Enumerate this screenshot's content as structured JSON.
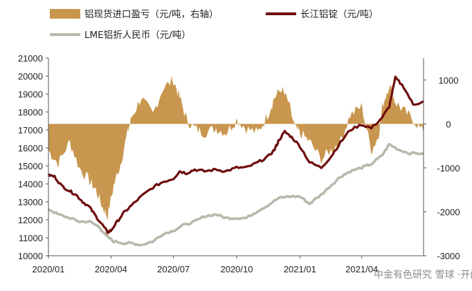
{
  "chart_data": {
    "type": "line",
    "legend": {
      "placement": "top",
      "items": [
        {
          "key": "profit",
          "label": "铝现货进口盈亏（元/吨，右轴）",
          "swatch": "bar",
          "color": "#c8964e"
        },
        {
          "key": "yangtze",
          "label": "长江铝锭（元/吨）",
          "swatch": "line",
          "color": "#6e0d0d"
        },
        {
          "key": "lme",
          "label": "LME铝折人民币（元/吨）",
          "swatch": "line",
          "color": "#b8b8ac"
        }
      ]
    },
    "x_ticks": [
      "2020/01",
      "2020/04",
      "2020/07",
      "2020/10",
      "2021/01",
      "2021/04"
    ],
    "x_range": [
      "2020-01-01",
      "2021-06-30"
    ],
    "y_left": {
      "min": 10000,
      "max": 21000,
      "ticks": [
        "10000",
        "11000",
        "12000",
        "13000",
        "14000",
        "15000",
        "16000",
        "17000",
        "18000",
        "19000",
        "20000",
        "21000"
      ]
    },
    "y_right": {
      "min": -3000,
      "max": 1500,
      "ticks": [
        "-3000",
        "-2000",
        "-1000",
        "0",
        "1000"
      ]
    },
    "grid": false,
    "series": [
      {
        "key": "yangtze",
        "color": "#6e0d0d",
        "axis": "left",
        "x": [
          "2020-01-01",
          "2020-01-10",
          "2020-01-20",
          "2020-02-01",
          "2020-02-10",
          "2020-02-20",
          "2020-03-01",
          "2020-03-10",
          "2020-03-20",
          "2020-03-27",
          "2020-04-01",
          "2020-04-10",
          "2020-04-20",
          "2020-05-01",
          "2020-05-15",
          "2020-06-01",
          "2020-06-15",
          "2020-07-01",
          "2020-07-10",
          "2020-07-20",
          "2020-08-01",
          "2020-08-15",
          "2020-09-01",
          "2020-09-15",
          "2020-10-01",
          "2020-10-15",
          "2020-11-01",
          "2020-11-15",
          "2020-11-25",
          "2020-12-01",
          "2020-12-10",
          "2020-12-20",
          "2021-01-01",
          "2021-01-15",
          "2021-02-01",
          "2021-02-15",
          "2021-03-01",
          "2021-03-15",
          "2021-04-01",
          "2021-04-15",
          "2021-05-01",
          "2021-05-11",
          "2021-05-20",
          "2021-06-01",
          "2021-06-15",
          "2021-06-30"
        ],
        "y": [
          14500,
          14400,
          13900,
          13600,
          13400,
          13000,
          12700,
          12200,
          11700,
          11300,
          11400,
          11900,
          12400,
          12800,
          13300,
          13800,
          14100,
          14300,
          14700,
          14600,
          14800,
          14700,
          14800,
          14700,
          14900,
          14900,
          15200,
          15500,
          15900,
          16400,
          16900,
          16600,
          16100,
          15200,
          14900,
          15500,
          16300,
          17000,
          17300,
          17100,
          17700,
          18300,
          19900,
          19400,
          18400,
          18600
        ]
      },
      {
        "key": "lme",
        "color": "#b8b8ac",
        "axis": "left",
        "x": [
          "2020-01-01",
          "2020-01-15",
          "2020-02-01",
          "2020-02-15",
          "2020-03-01",
          "2020-03-15",
          "2020-03-25",
          "2020-04-05",
          "2020-04-20",
          "2020-05-01",
          "2020-05-15",
          "2020-06-01",
          "2020-06-15",
          "2020-07-01",
          "2020-07-15",
          "2020-08-01",
          "2020-08-15",
          "2020-09-01",
          "2020-09-15",
          "2020-10-01",
          "2020-10-15",
          "2020-11-01",
          "2020-11-15",
          "2020-12-01",
          "2020-12-15",
          "2021-01-01",
          "2021-01-15",
          "2021-02-01",
          "2021-02-15",
          "2021-03-01",
          "2021-03-15",
          "2021-04-01",
          "2021-04-15",
          "2021-05-01",
          "2021-05-11",
          "2021-05-25",
          "2021-06-10",
          "2021-06-30"
        ],
        "y": [
          12600,
          12300,
          12100,
          11900,
          11900,
          11600,
          11100,
          10800,
          10700,
          10700,
          10600,
          10800,
          11200,
          11400,
          11700,
          11900,
          12200,
          12300,
          12100,
          12100,
          12100,
          12500,
          12800,
          13200,
          13300,
          13300,
          12900,
          13400,
          13900,
          14400,
          14700,
          14900,
          15100,
          15600,
          16200,
          15900,
          15700,
          15700
        ]
      },
      {
        "key": "profit",
        "color": "#c8964e",
        "axis": "right",
        "type": "area",
        "x": [
          "2020-01-01",
          "2020-01-15",
          "2020-02-01",
          "2020-02-15",
          "2020-03-01",
          "2020-03-10",
          "2020-03-20",
          "2020-03-27",
          "2020-04-05",
          "2020-04-15",
          "2020-04-25",
          "2020-05-01",
          "2020-05-15",
          "2020-06-01",
          "2020-06-15",
          "2020-07-01",
          "2020-07-10",
          "2020-07-20",
          "2020-08-01",
          "2020-08-15",
          "2020-09-01",
          "2020-09-15",
          "2020-10-01",
          "2020-10-15",
          "2020-11-01",
          "2020-11-15",
          "2020-11-25",
          "2020-12-05",
          "2020-12-15",
          "2020-12-25",
          "2021-01-01",
          "2021-01-15",
          "2021-02-01",
          "2021-02-15",
          "2021-03-01",
          "2021-03-15",
          "2021-04-01",
          "2021-04-15",
          "2021-04-25",
          "2021-05-01",
          "2021-05-11",
          "2021-05-20",
          "2021-06-01",
          "2021-06-15",
          "2021-06-30"
        ],
        "y": [
          -600,
          -900,
          -400,
          -1000,
          -1300,
          -1500,
          -1900,
          -2100,
          -1400,
          -900,
          -200,
          150,
          600,
          200,
          800,
          1000,
          600,
          100,
          -100,
          -200,
          -100,
          -200,
          100,
          -100,
          -200,
          200,
          600,
          800,
          500,
          -100,
          -200,
          -400,
          -800,
          -600,
          -400,
          200,
          400,
          -600,
          -300,
          400,
          900,
          500,
          300,
          100,
          -200
        ]
      }
    ]
  },
  "watermark": "中金有色研究 雪球 ·开门"
}
